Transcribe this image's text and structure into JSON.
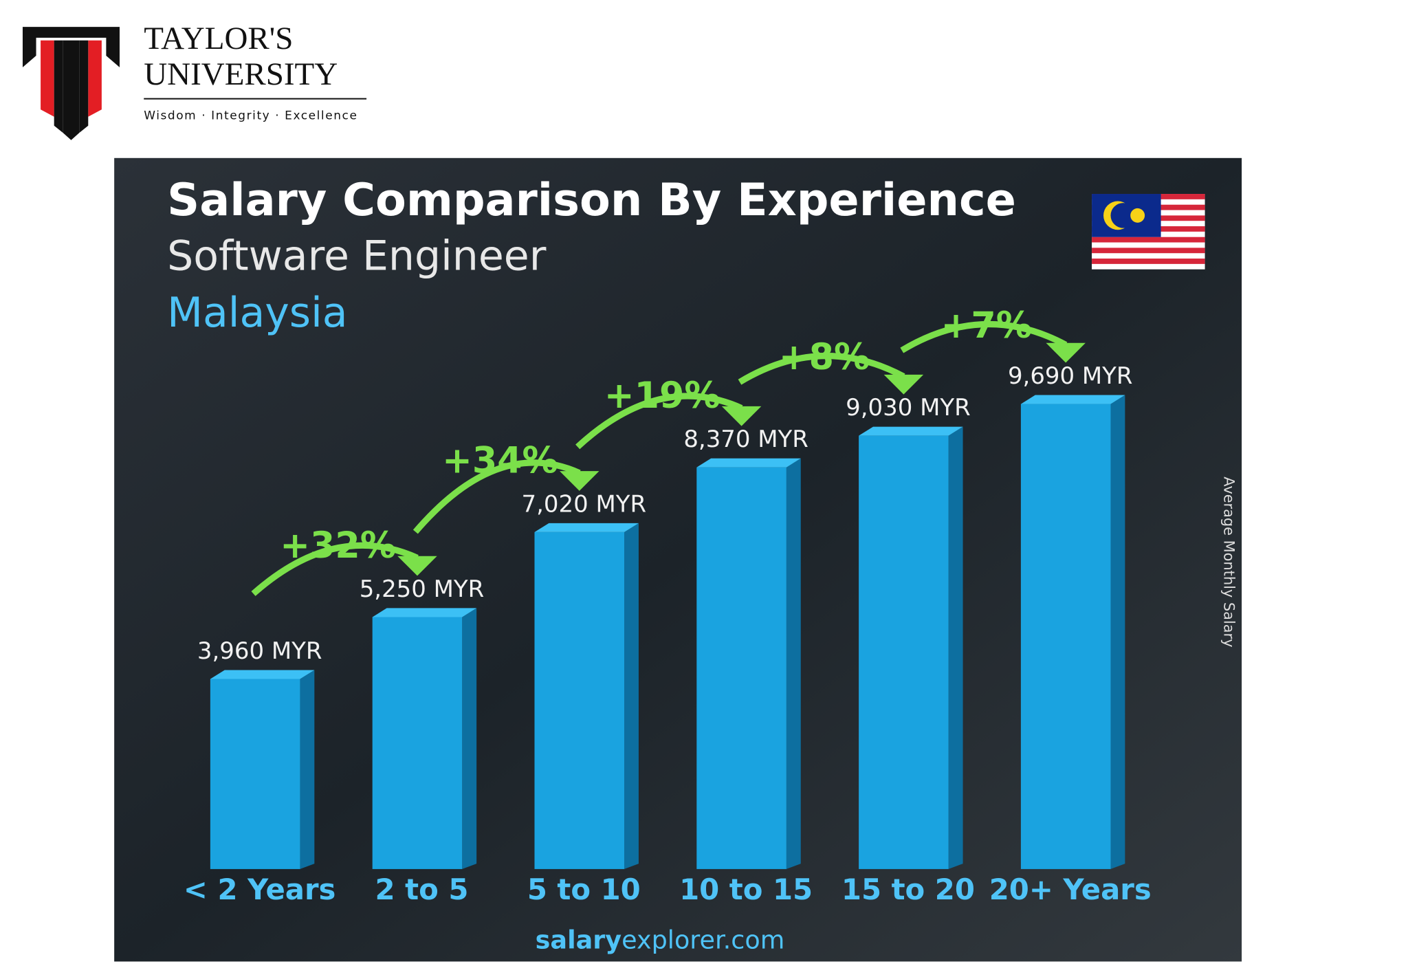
{
  "header": {
    "name_line1": "TAYLOR'S",
    "name_line2": "UNIVERSITY",
    "tagline": "Wisdom · Integrity · Excellence"
  },
  "chart_data": {
    "type": "bar",
    "title": "Salary Comparison By Experience",
    "subtitle": "Software Engineer",
    "country": "Malaysia",
    "y_label": "Average Monthly Salary",
    "categories": [
      "< 2 Years",
      "2 to 5",
      "5 to 10",
      "10 to 15",
      "15 to 20",
      "20+ Years"
    ],
    "values": [
      3960,
      5250,
      7020,
      8370,
      9030,
      9690
    ],
    "value_labels": [
      "3,960 MYR",
      "5,250 MYR",
      "7,020 MYR",
      "8,370 MYR",
      "9,030 MYR",
      "9,690 MYR"
    ],
    "color": "#1aa3e0",
    "growth_values": [
      32,
      34,
      19,
      8,
      7
    ],
    "growth_labels": [
      "+32%",
      "+34%",
      "+19%",
      "+8%",
      "+7%"
    ],
    "growth_color": "#7be04a",
    "source": {
      "brand": "salary",
      "domain": "explorer.com"
    }
  }
}
